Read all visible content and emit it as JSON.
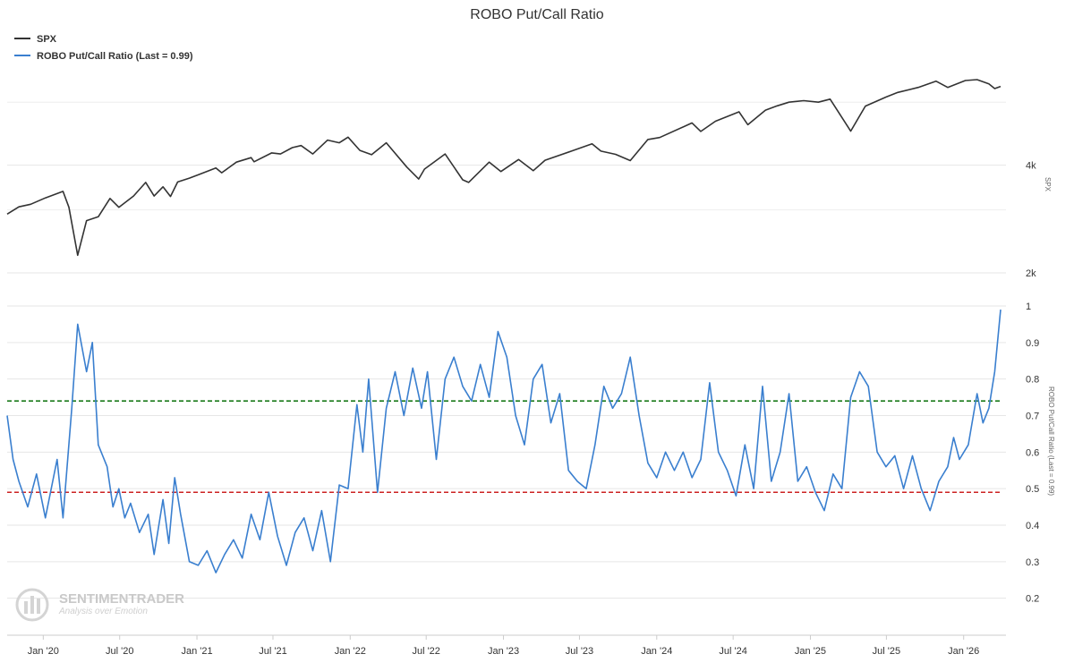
{
  "chart_data": {
    "type": "line",
    "title": "ROBO Put/Call Ratio",
    "legend": {
      "placement": "top-left",
      "entries": [
        "SPX",
        "ROBO Put/Call Ratio (Last = 0.99)"
      ]
    },
    "x_ticks": [
      "Jan '20",
      "Jul '20",
      "Jan '21",
      "Jul '21",
      "Jan '22",
      "Jul '22",
      "Jan '23",
      "Jul '23",
      "Jan '24",
      "Jul '24",
      "Jan '25",
      "Jul '25",
      "Jan '26"
    ],
    "x_tick_dates": [
      "2020-01-01",
      "2020-07-01",
      "2021-01-01",
      "2021-07-01",
      "2022-01-01",
      "2022-07-01",
      "2023-01-01",
      "2023-07-01",
      "2024-01-01",
      "2024-07-01",
      "2025-01-01",
      "2025-07-01",
      "2026-01-01"
    ],
    "xlim": [
      "2019-10-07",
      "2026-03-30"
    ],
    "grid": true,
    "spx_axis": {
      "title": "SPX",
      "scale": "log",
      "ticks": [
        "2k",
        "4k"
      ],
      "tick_values": [
        2000,
        4000
      ],
      "ylim": [
        2000,
        8200
      ]
    },
    "ratio_axis": {
      "title": "ROBO Put/Call Ratio (Last = 0.99)",
      "ticks": [
        "0.2",
        "0.3",
        "0.4",
        "0.5",
        "0.6",
        "0.7",
        "0.8",
        "0.9",
        "1"
      ],
      "tick_values": [
        0.2,
        0.3,
        0.4,
        0.5,
        0.6,
        0.7,
        0.8,
        0.9,
        1.0
      ],
      "ylim": [
        0.16,
        1.0
      ]
    },
    "reference_lines": [
      {
        "value": 0.74,
        "color": "#1a7a1a",
        "style": "dashed"
      },
      {
        "value": 0.49,
        "color": "#cc2222",
        "style": "dashed"
      }
    ],
    "series": [
      {
        "name": "SPX",
        "color": "#333333",
        "points": [
          [
            "2019-10-07",
            2920
          ],
          [
            "2019-11-04",
            3060
          ],
          [
            "2019-12-02",
            3110
          ],
          [
            "2020-01-06",
            3240
          ],
          [
            "2020-02-17",
            3380
          ],
          [
            "2020-03-02",
            3050
          ],
          [
            "2020-03-23",
            2240
          ],
          [
            "2020-04-13",
            2800
          ],
          [
            "2020-05-11",
            2870
          ],
          [
            "2020-06-08",
            3230
          ],
          [
            "2020-06-29",
            3050
          ],
          [
            "2020-08-03",
            3280
          ],
          [
            "2020-09-01",
            3580
          ],
          [
            "2020-09-21",
            3280
          ],
          [
            "2020-10-12",
            3480
          ],
          [
            "2020-10-30",
            3270
          ],
          [
            "2020-11-16",
            3590
          ],
          [
            "2020-12-14",
            3680
          ],
          [
            "2021-01-04",
            3760
          ],
          [
            "2021-02-15",
            3930
          ],
          [
            "2021-03-01",
            3810
          ],
          [
            "2021-04-05",
            4080
          ],
          [
            "2021-05-10",
            4200
          ],
          [
            "2021-05-17",
            4090
          ],
          [
            "2021-06-28",
            4330
          ],
          [
            "2021-07-19",
            4300
          ],
          [
            "2021-08-16",
            4480
          ],
          [
            "2021-09-06",
            4540
          ],
          [
            "2021-10-04",
            4300
          ],
          [
            "2021-11-08",
            4700
          ],
          [
            "2021-12-06",
            4620
          ],
          [
            "2021-12-27",
            4790
          ],
          [
            "2022-01-24",
            4400
          ],
          [
            "2022-02-21",
            4280
          ],
          [
            "2022-03-28",
            4620
          ],
          [
            "2022-05-16",
            3950
          ],
          [
            "2022-06-13",
            3660
          ],
          [
            "2022-06-27",
            3900
          ],
          [
            "2022-08-15",
            4300
          ],
          [
            "2022-09-26",
            3640
          ],
          [
            "2022-10-10",
            3580
          ],
          [
            "2022-11-28",
            4080
          ],
          [
            "2022-12-26",
            3840
          ],
          [
            "2023-02-06",
            4150
          ],
          [
            "2023-03-13",
            3860
          ],
          [
            "2023-04-10",
            4130
          ],
          [
            "2023-06-12",
            4380
          ],
          [
            "2023-07-31",
            4590
          ],
          [
            "2023-08-21",
            4380
          ],
          [
            "2023-09-25",
            4290
          ],
          [
            "2023-10-30",
            4120
          ],
          [
            "2023-12-11",
            4720
          ],
          [
            "2024-01-08",
            4780
          ],
          [
            "2024-03-25",
            5250
          ],
          [
            "2024-04-15",
            4970
          ],
          [
            "2024-05-20",
            5310
          ],
          [
            "2024-07-15",
            5640
          ],
          [
            "2024-08-05",
            5190
          ],
          [
            "2024-09-16",
            5700
          ],
          [
            "2024-10-14",
            5860
          ],
          [
            "2024-11-11",
            6000
          ],
          [
            "2024-12-16",
            6060
          ],
          [
            "2025-01-20",
            6000
          ],
          [
            "2025-02-17",
            6120
          ],
          [
            "2025-03-10",
            5600
          ],
          [
            "2025-04-07",
            4980
          ],
          [
            "2025-05-12",
            5850
          ],
          [
            "2025-06-30",
            6200
          ],
          [
            "2025-07-28",
            6390
          ],
          [
            "2025-09-15",
            6600
          ],
          [
            "2025-10-27",
            6870
          ],
          [
            "2025-11-24",
            6600
          ],
          [
            "2026-01-05",
            6900
          ],
          [
            "2026-02-02",
            6940
          ],
          [
            "2026-03-02",
            6750
          ],
          [
            "2026-03-16",
            6550
          ],
          [
            "2026-03-30",
            6640
          ]
        ]
      },
      {
        "name": "ROBO Put/Call Ratio (Last = 0.99)",
        "color": "#3a7fcf",
        "points": [
          [
            "2019-10-07",
            0.7
          ],
          [
            "2019-10-21",
            0.58
          ],
          [
            "2019-11-04",
            0.52
          ],
          [
            "2019-11-25",
            0.45
          ],
          [
            "2019-12-16",
            0.54
          ],
          [
            "2020-01-06",
            0.42
          ],
          [
            "2020-02-03",
            0.58
          ],
          [
            "2020-02-17",
            0.42
          ],
          [
            "2020-03-09",
            0.72
          ],
          [
            "2020-03-23",
            0.95
          ],
          [
            "2020-04-13",
            0.82
          ],
          [
            "2020-04-27",
            0.9
          ],
          [
            "2020-05-11",
            0.62
          ],
          [
            "2020-06-01",
            0.56
          ],
          [
            "2020-06-15",
            0.45
          ],
          [
            "2020-06-29",
            0.5
          ],
          [
            "2020-07-13",
            0.42
          ],
          [
            "2020-07-27",
            0.46
          ],
          [
            "2020-08-17",
            0.38
          ],
          [
            "2020-09-07",
            0.43
          ],
          [
            "2020-09-21",
            0.32
          ],
          [
            "2020-10-12",
            0.47
          ],
          [
            "2020-10-26",
            0.35
          ],
          [
            "2020-11-09",
            0.53
          ],
          [
            "2020-11-23",
            0.43
          ],
          [
            "2020-12-14",
            0.3
          ],
          [
            "2021-01-04",
            0.29
          ],
          [
            "2021-01-25",
            0.33
          ],
          [
            "2021-02-15",
            0.27
          ],
          [
            "2021-03-08",
            0.32
          ],
          [
            "2021-03-29",
            0.36
          ],
          [
            "2021-04-19",
            0.31
          ],
          [
            "2021-05-10",
            0.43
          ],
          [
            "2021-05-31",
            0.36
          ],
          [
            "2021-06-21",
            0.49
          ],
          [
            "2021-07-12",
            0.37
          ],
          [
            "2021-08-02",
            0.29
          ],
          [
            "2021-08-23",
            0.38
          ],
          [
            "2021-09-13",
            0.42
          ],
          [
            "2021-10-04",
            0.33
          ],
          [
            "2021-10-25",
            0.44
          ],
          [
            "2021-11-15",
            0.3
          ],
          [
            "2021-12-06",
            0.51
          ],
          [
            "2021-12-27",
            0.5
          ],
          [
            "2022-01-17",
            0.73
          ],
          [
            "2022-01-31",
            0.6
          ],
          [
            "2022-02-14",
            0.8
          ],
          [
            "2022-03-07",
            0.49
          ],
          [
            "2022-03-28",
            0.72
          ],
          [
            "2022-04-18",
            0.82
          ],
          [
            "2022-05-09",
            0.7
          ],
          [
            "2022-05-30",
            0.83
          ],
          [
            "2022-06-20",
            0.72
          ],
          [
            "2022-07-04",
            0.82
          ],
          [
            "2022-07-25",
            0.58
          ],
          [
            "2022-08-15",
            0.8
          ],
          [
            "2022-09-05",
            0.86
          ],
          [
            "2022-09-26",
            0.78
          ],
          [
            "2022-10-17",
            0.74
          ],
          [
            "2022-11-07",
            0.84
          ],
          [
            "2022-11-28",
            0.75
          ],
          [
            "2022-12-19",
            0.93
          ],
          [
            "2023-01-09",
            0.86
          ],
          [
            "2023-01-30",
            0.7
          ],
          [
            "2023-02-20",
            0.62
          ],
          [
            "2023-03-13",
            0.8
          ],
          [
            "2023-04-03",
            0.84
          ],
          [
            "2023-04-24",
            0.68
          ],
          [
            "2023-05-15",
            0.76
          ],
          [
            "2023-06-05",
            0.55
          ],
          [
            "2023-06-26",
            0.52
          ],
          [
            "2023-07-17",
            0.5
          ],
          [
            "2023-08-07",
            0.62
          ],
          [
            "2023-08-28",
            0.78
          ],
          [
            "2023-09-18",
            0.72
          ],
          [
            "2023-10-09",
            0.76
          ],
          [
            "2023-10-30",
            0.86
          ],
          [
            "2023-11-20",
            0.7
          ],
          [
            "2023-12-11",
            0.57
          ],
          [
            "2024-01-01",
            0.53
          ],
          [
            "2024-01-22",
            0.6
          ],
          [
            "2024-02-12",
            0.55
          ],
          [
            "2024-03-04",
            0.6
          ],
          [
            "2024-03-25",
            0.53
          ],
          [
            "2024-04-15",
            0.58
          ],
          [
            "2024-05-06",
            0.79
          ],
          [
            "2024-05-27",
            0.6
          ],
          [
            "2024-06-17",
            0.55
          ],
          [
            "2024-07-08",
            0.48
          ],
          [
            "2024-07-29",
            0.62
          ],
          [
            "2024-08-19",
            0.5
          ],
          [
            "2024-09-09",
            0.78
          ],
          [
            "2024-09-30",
            0.52
          ],
          [
            "2024-10-21",
            0.6
          ],
          [
            "2024-11-11",
            0.76
          ],
          [
            "2024-12-02",
            0.52
          ],
          [
            "2024-12-23",
            0.56
          ],
          [
            "2025-01-13",
            0.49
          ],
          [
            "2025-02-03",
            0.44
          ],
          [
            "2025-02-24",
            0.54
          ],
          [
            "2025-03-17",
            0.5
          ],
          [
            "2025-04-07",
            0.75
          ],
          [
            "2025-04-28",
            0.82
          ],
          [
            "2025-05-19",
            0.78
          ],
          [
            "2025-06-09",
            0.6
          ],
          [
            "2025-06-30",
            0.56
          ],
          [
            "2025-07-21",
            0.59
          ],
          [
            "2025-08-11",
            0.5
          ],
          [
            "2025-09-01",
            0.59
          ],
          [
            "2025-09-22",
            0.5
          ],
          [
            "2025-10-13",
            0.44
          ],
          [
            "2025-11-03",
            0.52
          ],
          [
            "2025-11-24",
            0.56
          ],
          [
            "2025-12-08",
            0.64
          ],
          [
            "2025-12-22",
            0.58
          ],
          [
            "2026-01-12",
            0.62
          ],
          [
            "2026-02-02",
            0.76
          ],
          [
            "2026-02-16",
            0.68
          ],
          [
            "2026-03-02",
            0.72
          ],
          [
            "2026-03-16",
            0.82
          ],
          [
            "2026-03-30",
            0.99
          ]
        ]
      }
    ]
  },
  "watermark": {
    "name": "SENTIMENTRADER",
    "tagline": "Analysis over Emotion"
  }
}
